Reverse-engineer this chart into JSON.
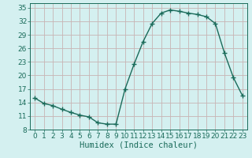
{
  "x": [
    0,
    1,
    2,
    3,
    4,
    5,
    6,
    7,
    8,
    9,
    10,
    11,
    12,
    13,
    14,
    15,
    16,
    17,
    18,
    19,
    20,
    21,
    22,
    23
  ],
  "y": [
    15.0,
    13.8,
    13.3,
    12.5,
    11.8,
    11.2,
    10.8,
    9.5,
    9.2,
    9.2,
    17.0,
    22.5,
    27.5,
    31.5,
    33.8,
    34.5,
    34.2,
    33.8,
    33.5,
    33.0,
    31.5,
    25.0,
    19.5,
    15.5
  ],
  "xlabel": "Humidex (Indice chaleur)",
  "ylabel": "",
  "xlim": [
    -0.5,
    23.5
  ],
  "ylim": [
    8,
    36
  ],
  "yticks": [
    8,
    11,
    14,
    17,
    20,
    23,
    26,
    29,
    32,
    35
  ],
  "xticks": [
    0,
    1,
    2,
    3,
    4,
    5,
    6,
    7,
    8,
    9,
    10,
    11,
    12,
    13,
    14,
    15,
    16,
    17,
    18,
    19,
    20,
    21,
    22,
    23
  ],
  "line_color": "#1a6b5a",
  "marker": "+",
  "bg_color": "#d4f0f0",
  "grid_color": "#c8b4b4",
  "tick_color": "#1a6b5a",
  "label_color": "#1a6b5a",
  "font_size": 6.5,
  "xlabel_fontsize": 7.5,
  "linewidth": 1.0,
  "markersize": 4.0
}
